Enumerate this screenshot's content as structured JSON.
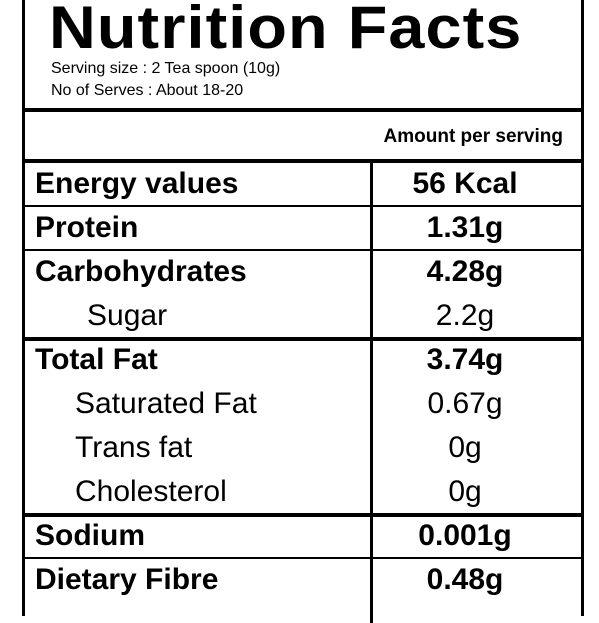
{
  "header": {
    "title": "Nutrition Facts",
    "serving_size": "Serving size : 2 Tea spoon (10g)",
    "servings": "No of Serves : About 18-20"
  },
  "table": {
    "column_header": "Amount per serving",
    "rows": [
      [
        "Energy values",
        "56 Kcal"
      ],
      [
        "Protein",
        "1.31g"
      ],
      [
        "Carbohydrates",
        "4.28g"
      ],
      [
        "Sugar",
        "2.2g"
      ],
      [
        "Total Fat",
        "3.74g"
      ],
      [
        "Saturated Fat",
        "0.67g"
      ],
      [
        "Trans fat",
        "0g"
      ],
      [
        "Cholesterol",
        "0g"
      ],
      [
        "Sodium",
        "0.001g"
      ],
      [
        "Dietary Fibre",
        "0.48g"
      ]
    ]
  }
}
